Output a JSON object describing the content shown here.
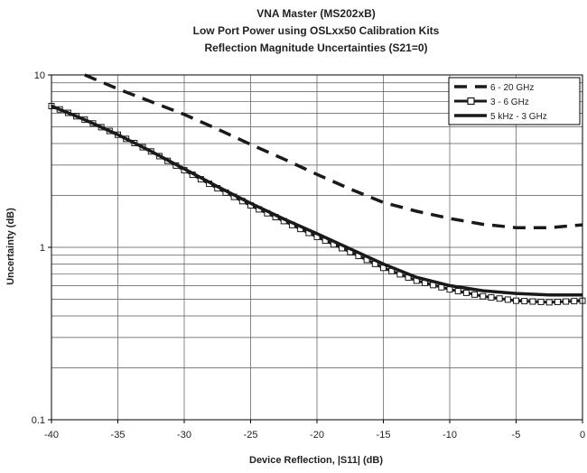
{
  "chart_data": {
    "type": "line",
    "title_lines": [
      "VNA Master (MS202xB)",
      "Low Port Power using OSLxx50 Calibration Kits",
      "Reflection Magnitude Uncertainties (S21=0)"
    ],
    "xlabel": "Device Reflection, |S11| (dB)",
    "ylabel": "Uncertainty (dB)",
    "xlim": [
      -40,
      0
    ],
    "ylim": [
      0.1,
      10
    ],
    "yscale": "log",
    "grid": true,
    "legend_placement": "top-right",
    "x_ticks": [
      "-40",
      "-35",
      "-30",
      "-25",
      "-20",
      "-15",
      "-10",
      "-5",
      "0"
    ],
    "y_ticks": [
      "0.1",
      "1",
      "10"
    ],
    "x": [
      -40,
      -37.5,
      -35,
      -32.5,
      -30,
      -27.5,
      -25,
      -22.5,
      -20,
      -17.5,
      -15,
      -12.5,
      -10,
      -7.5,
      -5,
      -2.5,
      0
    ],
    "series": [
      {
        "name": "6 - 20 GHz",
        "style": "dashed",
        "values": [
          null,
          10.0,
          8.3,
          7.0,
          5.9,
          4.85,
          3.95,
          3.25,
          2.65,
          2.18,
          1.82,
          1.62,
          1.47,
          1.36,
          1.3,
          1.3,
          1.35
        ]
      },
      {
        "name": "3 - 6 GHz",
        "style": "solid-square-markers",
        "values": [
          6.6,
          5.5,
          4.5,
          3.6,
          2.8,
          2.2,
          1.75,
          1.42,
          1.15,
          0.94,
          0.76,
          0.64,
          0.57,
          0.52,
          0.49,
          0.48,
          0.49
        ]
      },
      {
        "name": "5 kHz - 3 GHz",
        "style": "solid",
        "values": [
          6.6,
          5.5,
          4.5,
          3.6,
          2.85,
          2.25,
          1.8,
          1.46,
          1.2,
          0.98,
          0.8,
          0.67,
          0.6,
          0.56,
          0.54,
          0.53,
          0.53
        ]
      }
    ]
  }
}
